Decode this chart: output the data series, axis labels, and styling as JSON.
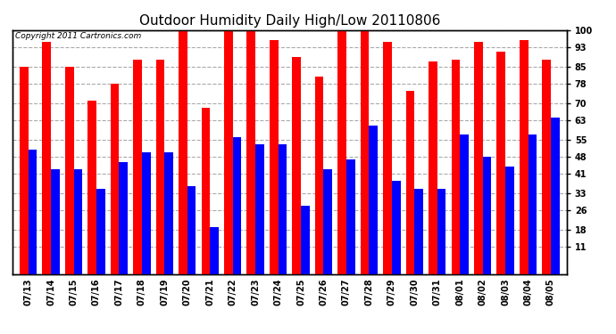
{
  "title": "Outdoor Humidity Daily High/Low 20110806",
  "copyright": "Copyright 2011 Cartronics.com",
  "dates": [
    "07/13",
    "07/14",
    "07/15",
    "07/16",
    "07/17",
    "07/18",
    "07/19",
    "07/20",
    "07/21",
    "07/22",
    "07/23",
    "07/24",
    "07/25",
    "07/26",
    "07/27",
    "07/28",
    "07/29",
    "07/30",
    "07/31",
    "08/01",
    "08/02",
    "08/03",
    "08/04",
    "08/05"
  ],
  "highs": [
    85,
    95,
    85,
    71,
    78,
    88,
    88,
    100,
    68,
    100,
    100,
    96,
    89,
    81,
    100,
    100,
    95,
    75,
    87,
    88,
    95,
    91,
    96,
    88
  ],
  "lows": [
    51,
    43,
    43,
    35,
    46,
    50,
    50,
    36,
    19,
    56,
    53,
    53,
    28,
    43,
    47,
    61,
    38,
    35,
    35,
    57,
    48,
    44,
    57,
    64
  ],
  "high_color": "#ff0000",
  "low_color": "#0000ff",
  "bg_color": "#ffffff",
  "plot_bg_color": "#ffffff",
  "grid_color": "#aaaaaa",
  "yticks": [
    11,
    18,
    26,
    33,
    41,
    48,
    55,
    63,
    70,
    78,
    85,
    93,
    100
  ],
  "ymin": 0,
  "ymax": 100,
  "bar_width": 0.38,
  "title_fontsize": 11,
  "tick_fontsize": 7,
  "copyright_fontsize": 6.5
}
